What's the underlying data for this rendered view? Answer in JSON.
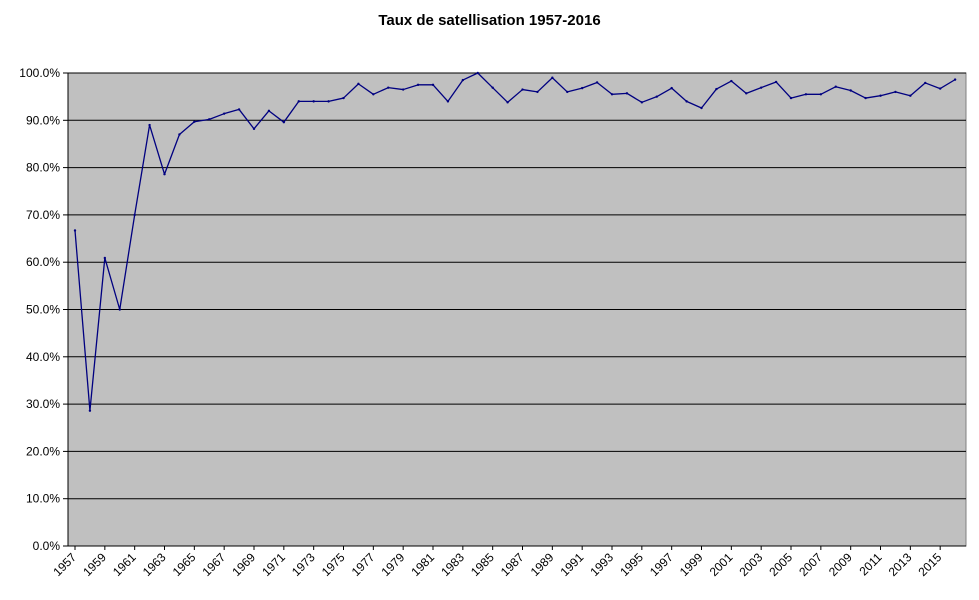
{
  "chart_data": {
    "type": "line",
    "title": "Taux de satellisation 1957-2016",
    "xlabel": "",
    "ylabel": "",
    "ylim": [
      0,
      100
    ],
    "y_tick_labels": [
      "0.0%",
      "10.0%",
      "20.0%",
      "30.0%",
      "40.0%",
      "50.0%",
      "60.0%",
      "70.0%",
      "80.0%",
      "90.0%",
      "100.0%"
    ],
    "x_tick_labels": [
      "1957",
      "1959",
      "1961",
      "1963",
      "1965",
      "1967",
      "1969",
      "1971",
      "1973",
      "1975",
      "1977",
      "1979",
      "1981",
      "1983",
      "1985",
      "1987",
      "1989",
      "1991",
      "1993",
      "1995",
      "1997",
      "1999",
      "2001",
      "2003",
      "2005",
      "2007",
      "2009",
      "2011",
      "2013",
      "2015"
    ],
    "grid": true,
    "legend": "none",
    "colors": {
      "plot_background": "#c0c0c0",
      "line": "#000080",
      "grid": "#000000"
    },
    "x": [
      1957,
      1958,
      1959,
      1960,
      1961,
      1962,
      1963,
      1964,
      1965,
      1966,
      1967,
      1968,
      1969,
      1970,
      1971,
      1972,
      1973,
      1974,
      1975,
      1976,
      1977,
      1978,
      1979,
      1980,
      1981,
      1982,
      1983,
      1984,
      1985,
      1986,
      1987,
      1988,
      1989,
      1990,
      1991,
      1992,
      1993,
      1994,
      1995,
      1996,
      1997,
      1998,
      1999,
      2000,
      2001,
      2002,
      2003,
      2004,
      2005,
      2006,
      2007,
      2008,
      2009,
      2010,
      2011,
      2012,
      2013,
      2014,
      2015,
      2016
    ],
    "series": [
      {
        "values": [
          66.7,
          28.6,
          60.9,
          50.0,
          70.0,
          89.0,
          78.6,
          87.0,
          89.7,
          90.2,
          91.4,
          92.3,
          88.2,
          92.0,
          89.6,
          94.0,
          94.0,
          94.0,
          94.7,
          97.7,
          95.5,
          96.9,
          96.5,
          97.5,
          97.5,
          94.0,
          98.5,
          100.0,
          96.9,
          93.8,
          96.5,
          96.0,
          99.0,
          96.0,
          96.8,
          98.0,
          95.5,
          95.7,
          93.8,
          95.0,
          96.8,
          94.0,
          92.6,
          96.6,
          98.3,
          95.7,
          96.9,
          98.1,
          94.7,
          95.5,
          95.5,
          97.1,
          96.3,
          94.7,
          95.2,
          96.0,
          95.2,
          97.9,
          96.7,
          98.6
        ]
      }
    ]
  }
}
